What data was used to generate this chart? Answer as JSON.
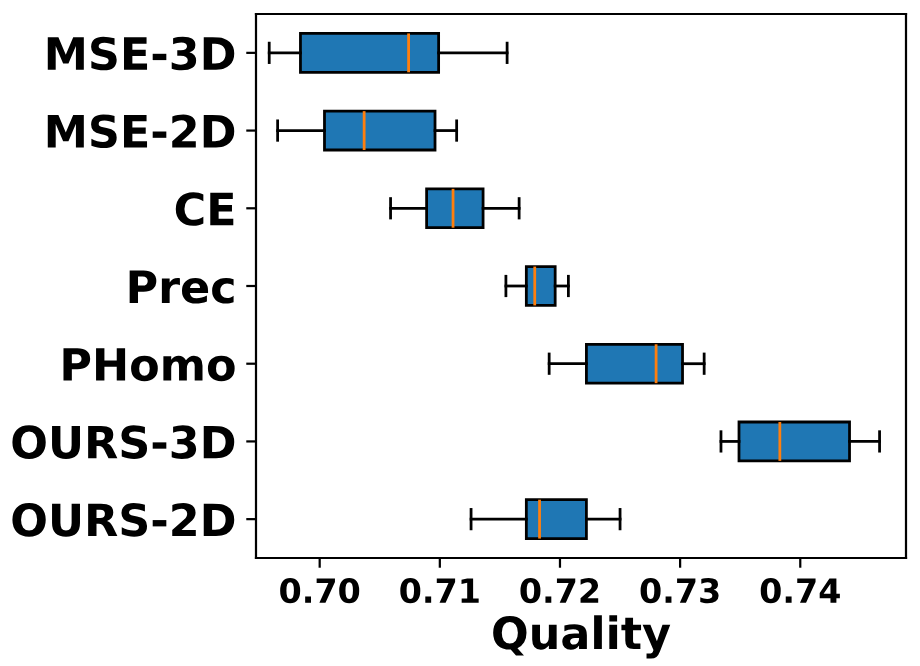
{
  "chart_data": {
    "type": "box",
    "orientation": "horizontal",
    "xlabel": "Quality",
    "categories": [
      "MSE-3D",
      "MSE-2D",
      "CE",
      "Prec",
      "PHomo",
      "OURS-3D",
      "OURS-2D"
    ],
    "color": "#1f77b4",
    "boxes": [
      {
        "low": 0.6958,
        "q1": 0.6984,
        "median": 0.7074,
        "q3": 0.7099,
        "high": 0.7156
      },
      {
        "low": 0.6965,
        "q1": 0.7004,
        "median": 0.7037,
        "q3": 0.7096,
        "high": 0.7114
      },
      {
        "low": 0.7059,
        "q1": 0.7089,
        "median": 0.7111,
        "q3": 0.7136,
        "high": 0.7166
      },
      {
        "low": 0.7155,
        "q1": 0.7172,
        "median": 0.7179,
        "q3": 0.7196,
        "high": 0.7207
      },
      {
        "low": 0.7191,
        "q1": 0.7222,
        "median": 0.728,
        "q3": 0.7302,
        "high": 0.732
      },
      {
        "low": 0.7334,
        "q1": 0.7349,
        "median": 0.7383,
        "q3": 0.7441,
        "high": 0.7466
      },
      {
        "low": 0.7126,
        "q1": 0.7172,
        "median": 0.7183,
        "q3": 0.7222,
        "high": 0.725
      }
    ],
    "xlim": [
      0.6947,
      0.7488
    ],
    "xticks": [
      {
        "value": 0.7,
        "label": "0.70"
      },
      {
        "value": 0.71,
        "label": "0.71"
      },
      {
        "value": 0.72,
        "label": "0.72"
      },
      {
        "value": 0.73,
        "label": "0.73"
      },
      {
        "value": 0.74,
        "label": "0.74"
      }
    ],
    "grid": false,
    "legend": false
  }
}
